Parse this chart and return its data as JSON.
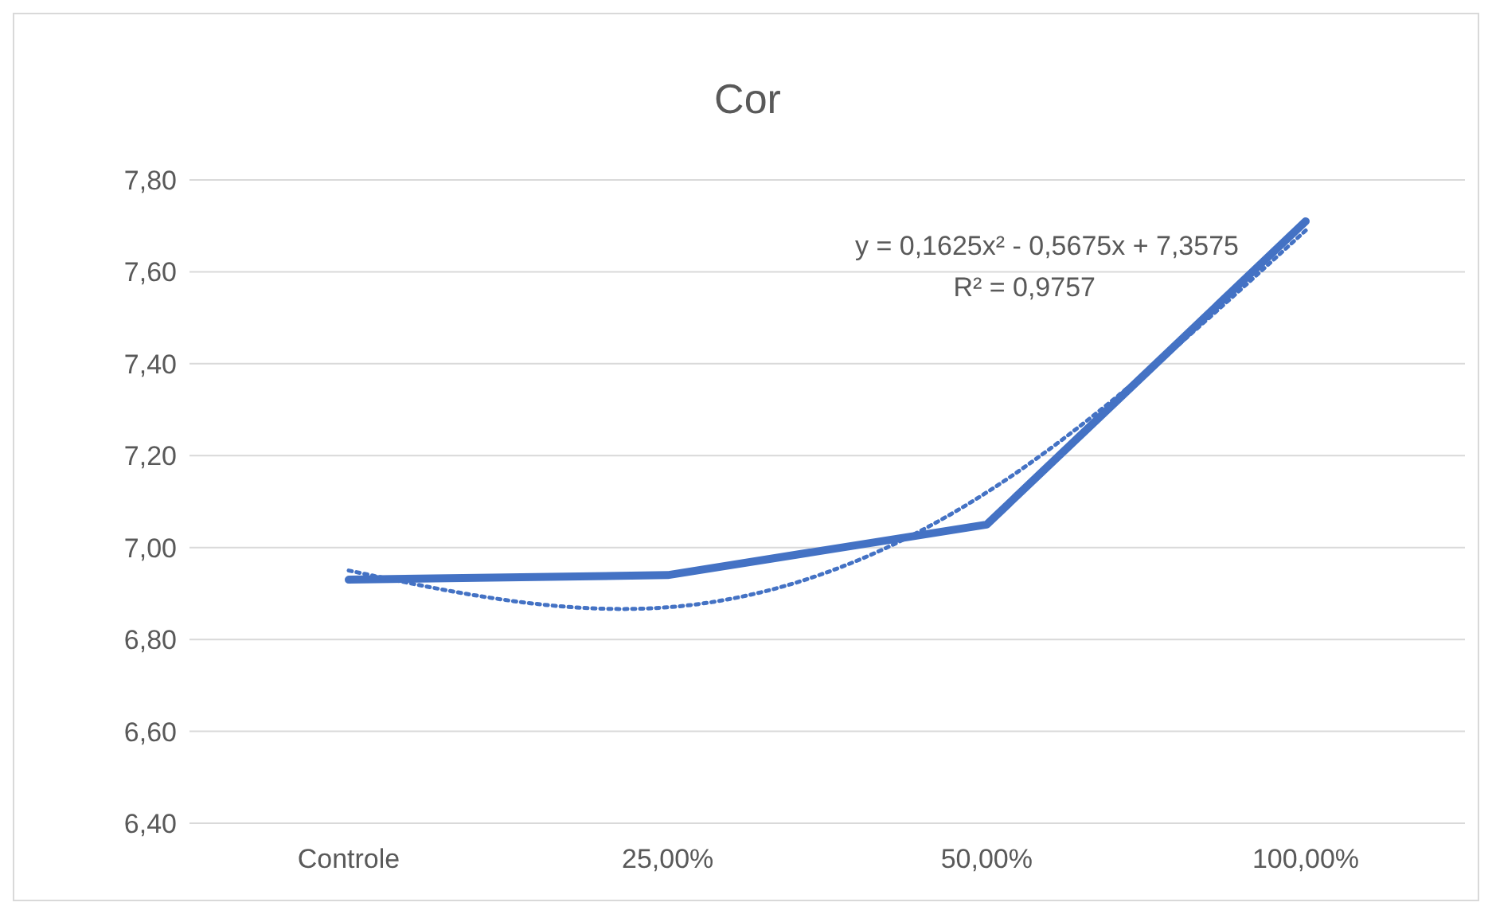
{
  "chart_data": {
    "type": "line",
    "title": "Cor",
    "categories": [
      "Controle",
      "25,00%",
      "50,00%",
      "100,00%"
    ],
    "series": [
      {
        "color": "#4472c4",
        "values": [
          6.93,
          6.94,
          7.05,
          7.71
        ],
        "line_style": "solid",
        "marker": "none"
      },
      {
        "color": "#4472c4",
        "values": [
          6.95,
          6.87,
          7.12,
          7.69
        ],
        "line_style": "dotted",
        "marker": "none"
      }
    ],
    "ylim": [
      6.4,
      7.8
    ],
    "yticks": [
      {
        "value": 6.4,
        "label": "6,40"
      },
      {
        "value": 6.6,
        "label": "6,60"
      },
      {
        "value": 6.8,
        "label": "6,80"
      },
      {
        "value": 7.0,
        "label": "7,00"
      },
      {
        "value": 7.2,
        "label": "7,20"
      },
      {
        "value": 7.4,
        "label": "7,40"
      },
      {
        "value": 7.6,
        "label": "7,60"
      },
      {
        "value": 7.8,
        "label": "7,80"
      }
    ],
    "grid": "y",
    "legend": false,
    "annotations": [
      "y = 0,1625x² - 0,5675x + 7,3575",
      "R² = 0,9757"
    ]
  }
}
